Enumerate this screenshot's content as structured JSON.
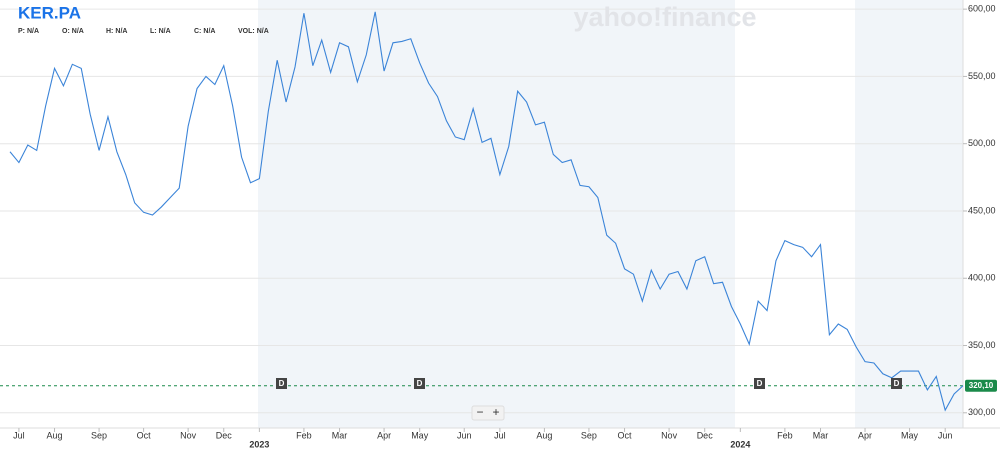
{
  "chart_data": {
    "type": "line",
    "title": "KER.PA",
    "quote_fields": [
      {
        "label": "P:",
        "value": "N/A"
      },
      {
        "label": "O:",
        "value": "N/A"
      },
      {
        "label": "H:",
        "value": "N/A"
      },
      {
        "label": "L:",
        "value": "N/A"
      },
      {
        "label": "C:",
        "value": "N/A"
      },
      {
        "label": "VOL:",
        "value": "N/A"
      }
    ],
    "watermark": "yahoo!finance",
    "dividend_marker": "D",
    "zoom_out": "−",
    "zoom_in": "+",
    "categories": [
      null,
      "Jul",
      null,
      null,
      null,
      "Aug",
      null,
      null,
      null,
      null,
      "Sep",
      null,
      null,
      null,
      null,
      "Oct",
      null,
      null,
      null,
      null,
      "Nov",
      null,
      null,
      null,
      "Dec",
      null,
      null,
      null,
      "2023",
      null,
      null,
      null,
      null,
      "Feb",
      null,
      null,
      null,
      "Mar",
      null,
      null,
      null,
      null,
      "Apr",
      null,
      null,
      null,
      "May",
      null,
      null,
      null,
      null,
      "Jun",
      null,
      null,
      null,
      "Jul",
      null,
      null,
      null,
      null,
      "Aug",
      null,
      null,
      null,
      null,
      "Sep",
      null,
      null,
      null,
      "Oct",
      null,
      null,
      null,
      null,
      "Nov",
      null,
      null,
      null,
      "Dec",
      null,
      null,
      null,
      "2024",
      null,
      null,
      null,
      null,
      "Feb",
      null,
      null,
      null,
      "Mar",
      null,
      null,
      null,
      null,
      "Apr",
      null,
      null,
      null,
      null,
      "May",
      null,
      null,
      null,
      "Jun",
      null,
      null
    ],
    "series": [
      {
        "name": "KER.PA",
        "color": "#3b84d8",
        "values": [
          494,
          486,
          499,
          495,
          528,
          556,
          543,
          559,
          556,
          522,
          495,
          520,
          494,
          477,
          456,
          449,
          447,
          453,
          460,
          467,
          513,
          541,
          550,
          544,
          558,
          528,
          490,
          471,
          474,
          524,
          562,
          531,
          557,
          597,
          558,
          577,
          553,
          575,
          572,
          546,
          566,
          598,
          554,
          575,
          576,
          578,
          560,
          545,
          535,
          517,
          505,
          503,
          526,
          501,
          504,
          477,
          498,
          539,
          531,
          514,
          516,
          492,
          486,
          488,
          469,
          468,
          460,
          432,
          426,
          407,
          403,
          383,
          406,
          392,
          403,
          405,
          392,
          413,
          416,
          396,
          397,
          379,
          366,
          351,
          383,
          376,
          413,
          428,
          425,
          423,
          416,
          425,
          358,
          366,
          362,
          349,
          338,
          337,
          329,
          326,
          331,
          331,
          331,
          317,
          327,
          302,
          314,
          320.1
        ]
      }
    ],
    "last_price": 320.1,
    "last_price_label": "320,10",
    "last_price_color": "#1a8a4a",
    "ylim": [
      288.7,
      606.8
    ],
    "yticks": [
      {
        "value": 300,
        "label": "300,00"
      },
      {
        "value": 350,
        "label": "350,00"
      },
      {
        "value": 400,
        "label": "400,00"
      },
      {
        "value": 450,
        "label": "450,00"
      },
      {
        "value": 500,
        "label": "500,00"
      },
      {
        "value": 550,
        "label": "550,00"
      },
      {
        "value": 600,
        "label": "600,00"
      }
    ],
    "grid": true
  }
}
